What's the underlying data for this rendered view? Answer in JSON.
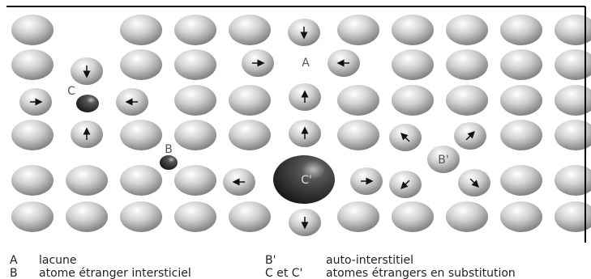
{
  "labels": {
    "A": "A",
    "B": "B",
    "B_prime": "B'",
    "C": "C",
    "C_prime": "C'"
  },
  "legend": [
    {
      "key": "A",
      "text": "lacune"
    },
    {
      "key": "B",
      "text": "atome étranger intersticiel"
    },
    {
      "key": "B'",
      "text": "auto-interstitiel"
    },
    {
      "key": "C et C'",
      "text": "atomes étrangers en substitution"
    }
  ]
}
